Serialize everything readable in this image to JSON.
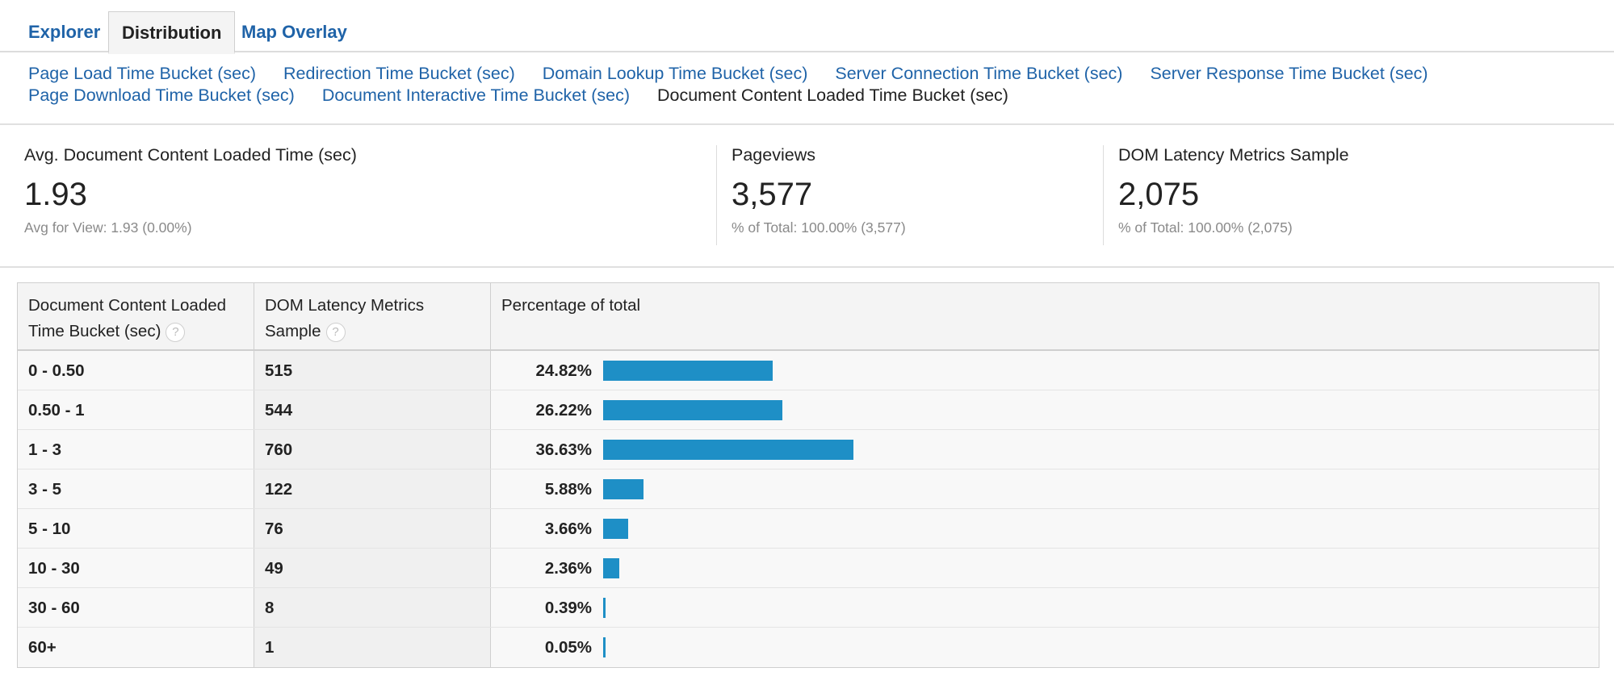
{
  "tabs": [
    "Explorer",
    "Distribution",
    "Map Overlay"
  ],
  "sublinks_row1": [
    "Page Load Time Bucket (sec)",
    "Redirection Time Bucket (sec)",
    "Domain Lookup Time Bucket (sec)",
    "Server Connection Time Bucket (sec)",
    "Server Response Time Bucket (sec)"
  ],
  "sublinks_row2": [
    "Page Download Time Bucket (sec)",
    "Document Interactive Time Bucket (sec)"
  ],
  "current_sublink": "Document Content Loaded Time Bucket (sec)",
  "metrics": [
    {
      "label": "Avg. Document Content Loaded Time (sec)",
      "value": "1.93",
      "sub": "Avg for View: 1.93 (0.00%)"
    },
    {
      "label": "Pageviews",
      "value": "3,577",
      "sub": "% of Total: 100.00% (3,577)"
    },
    {
      "label": "DOM Latency Metrics Sample",
      "value": "2,075",
      "sub": "% of Total: 100.00% (2,075)"
    }
  ],
  "table": {
    "headers": [
      "Document Content Loaded Time Bucket (sec)",
      "DOM Latency Metrics Sample",
      "Percentage of total"
    ],
    "help_glyph": "?",
    "rows": [
      {
        "bucket": "0 - 0.50",
        "sample": "515",
        "pct": "24.82%",
        "pct_value": 24.82
      },
      {
        "bucket": "0.50 - 1",
        "sample": "544",
        "pct": "26.22%",
        "pct_value": 26.22
      },
      {
        "bucket": "1 - 3",
        "sample": "760",
        "pct": "36.63%",
        "pct_value": 36.63
      },
      {
        "bucket": "3 - 5",
        "sample": "122",
        "pct": "5.88%",
        "pct_value": 5.88
      },
      {
        "bucket": "5 - 10",
        "sample": "76",
        "pct": "3.66%",
        "pct_value": 3.66
      },
      {
        "bucket": "10 - 30",
        "sample": "49",
        "pct": "2.36%",
        "pct_value": 2.36
      },
      {
        "bucket": "30 - 60",
        "sample": "8",
        "pct": "0.39%",
        "pct_value": 0.39
      },
      {
        "bucket": "60+",
        "sample": "1",
        "pct": "0.05%",
        "pct_value": 0.05
      }
    ]
  },
  "colors": {
    "link": "#1f63a8",
    "bar": "#1e8fc6"
  }
}
